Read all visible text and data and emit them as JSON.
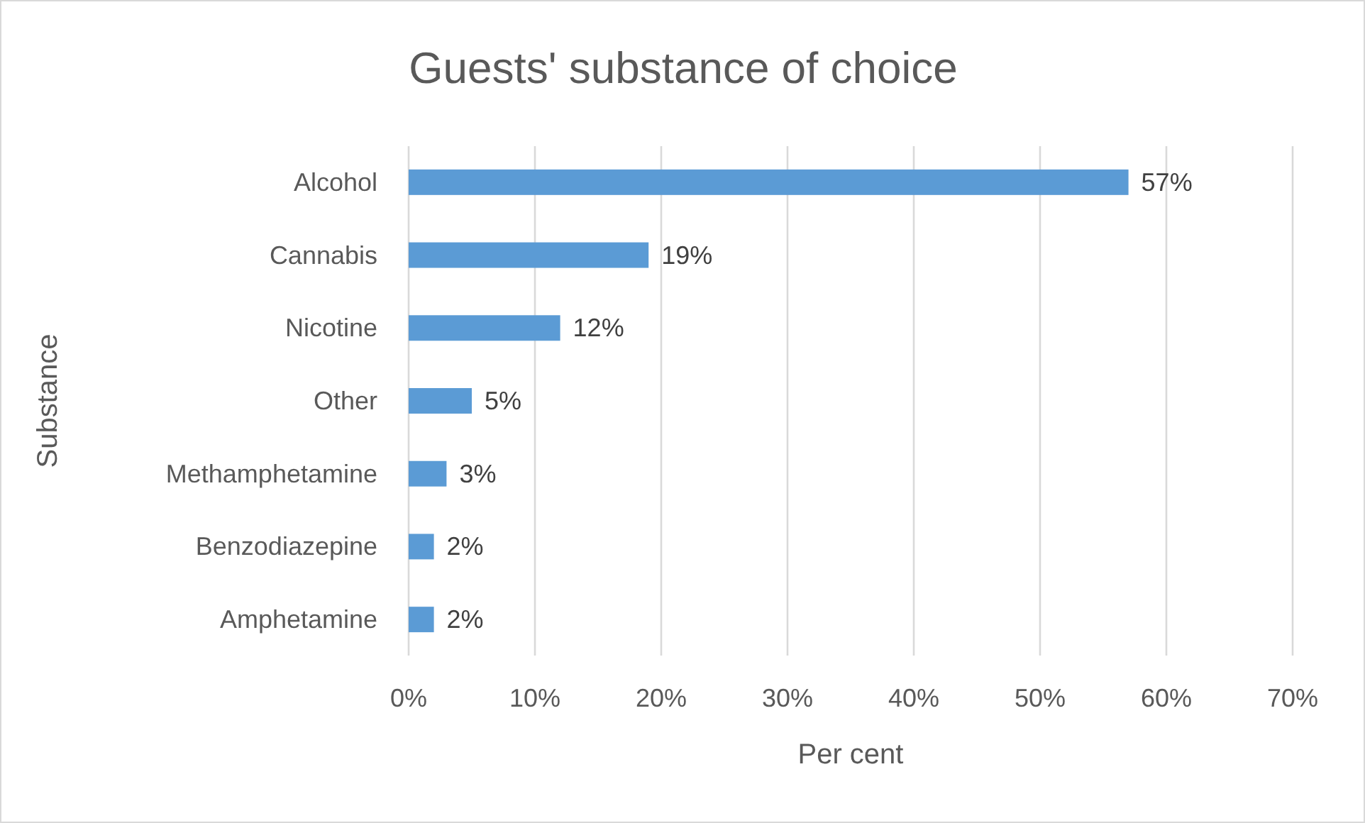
{
  "chart_data": {
    "type": "bar",
    "orientation": "horizontal",
    "title": "Guests' substance of choice",
    "xlabel": "Per cent",
    "ylabel": "Substance",
    "categories": [
      "Alcohol",
      "Cannabis",
      "Nicotine",
      "Other",
      "Methamphetamine",
      "Benzodiazepine",
      "Amphetamine"
    ],
    "values": [
      57,
      19,
      12,
      5,
      3,
      2,
      2
    ],
    "value_labels": [
      "57%",
      "19%",
      "12%",
      "5%",
      "3%",
      "2%",
      "2%"
    ],
    "color": "#5b9bd5",
    "xlim": [
      0,
      70
    ],
    "xticks": [
      {
        "value": 0,
        "label": "0%"
      },
      {
        "value": 10,
        "label": "10%"
      },
      {
        "value": 20,
        "label": "20%"
      },
      {
        "value": 30,
        "label": "30%"
      },
      {
        "value": 40,
        "label": "40%"
      },
      {
        "value": 50,
        "label": "50%"
      },
      {
        "value": 60,
        "label": "60%"
      },
      {
        "value": 70,
        "label": "70%"
      }
    ],
    "grid": "x"
  }
}
